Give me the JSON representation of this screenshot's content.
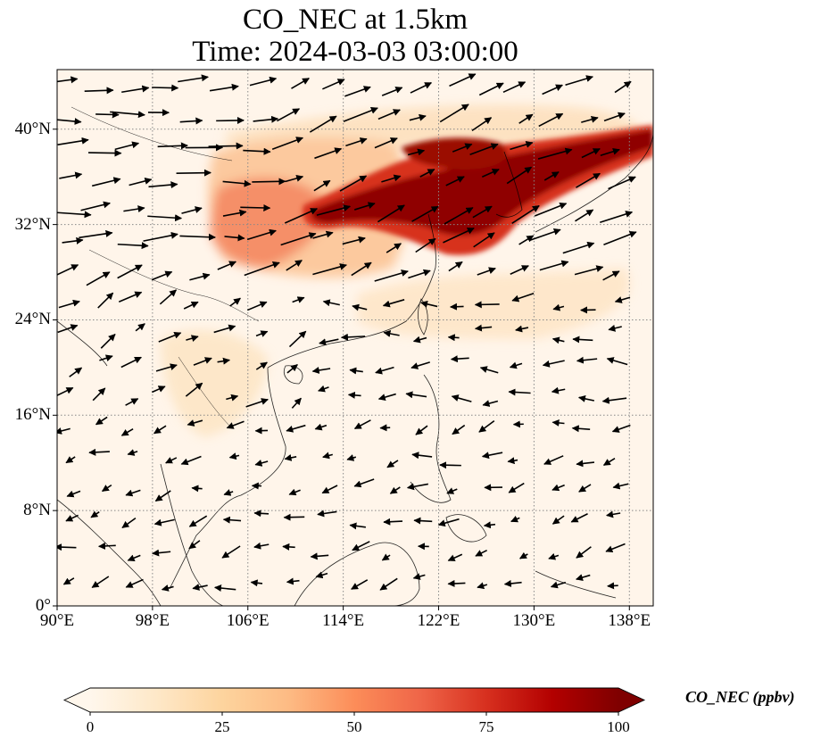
{
  "title_line1": "CO_NEC at 1.5km",
  "title_line2": "Time: 2024-03-03 03:00:00",
  "map": {
    "projection": "PlateCarree",
    "lon_range": [
      90,
      140
    ],
    "lat_range": [
      0,
      45
    ],
    "lon_ticks": [
      {
        "value": 90,
        "label": "90°E"
      },
      {
        "value": 98,
        "label": "98°E"
      },
      {
        "value": 106,
        "label": "106°E"
      },
      {
        "value": 114,
        "label": "114°E"
      },
      {
        "value": 122,
        "label": "122°E"
      },
      {
        "value": 130,
        "label": "130°E"
      },
      {
        "value": 138,
        "label": "138°E"
      }
    ],
    "lat_ticks": [
      {
        "value": 0,
        "label": "0°"
      },
      {
        "value": 8,
        "label": "8°N"
      },
      {
        "value": 16,
        "label": "16°N"
      },
      {
        "value": 24,
        "label": "24°N"
      },
      {
        "value": 32,
        "label": "32°N"
      },
      {
        "value": 40,
        "label": "40°N"
      }
    ],
    "gridlines": true,
    "wind_vectors": true,
    "colormap": "OrRd",
    "background_color": "#fff5ea",
    "coastline_color": "#000000",
    "gridline_color": "#888888"
  },
  "colorbar": {
    "label": "CO_NEC (ppbv)",
    "min": 0,
    "max": 100,
    "extend": "both",
    "ticks": [
      {
        "value": 0,
        "label": "0"
      },
      {
        "value": 25,
        "label": "25"
      },
      {
        "value": 50,
        "label": "50"
      },
      {
        "value": 75,
        "label": "75"
      },
      {
        "value": 100,
        "label": "100"
      }
    ],
    "colors": [
      "#fff7ec",
      "#fee8c8",
      "#fdd49e",
      "#fdbb84",
      "#fc8d59",
      "#ef6548",
      "#d7301f",
      "#b30000",
      "#7f0000"
    ]
  }
}
